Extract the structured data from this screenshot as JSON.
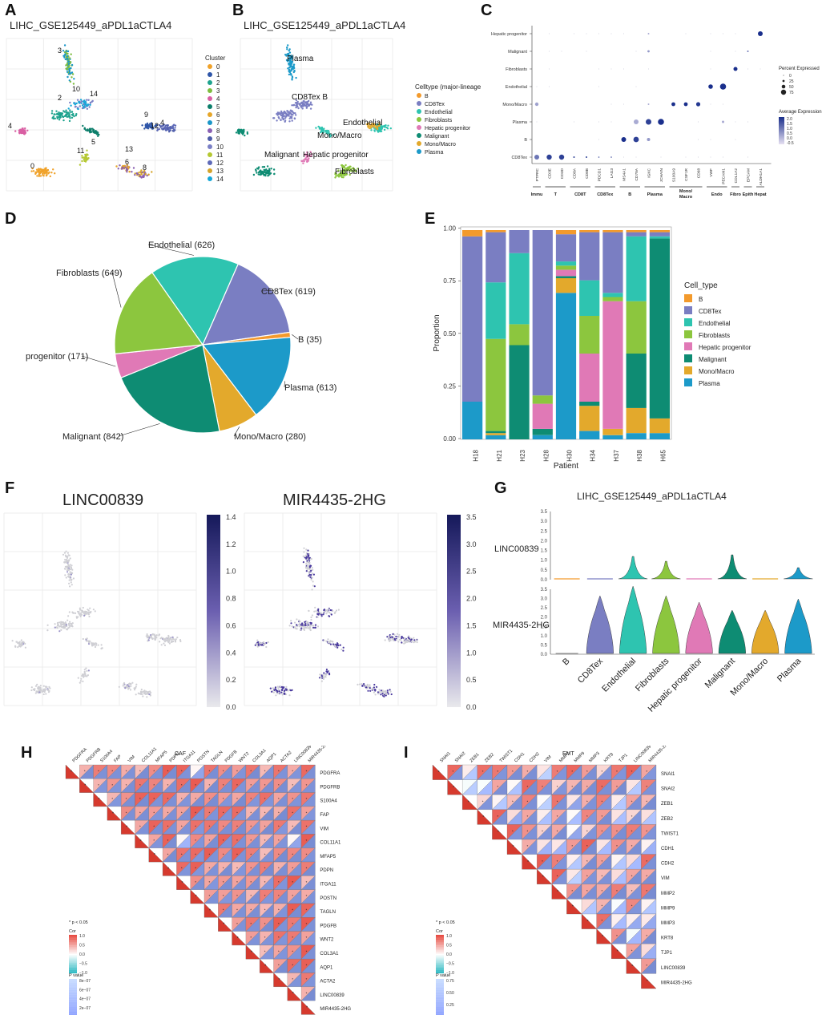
{
  "figure": {
    "panel_labels": [
      "A",
      "B",
      "C",
      "D",
      "E",
      "F",
      "G",
      "H",
      "I"
    ],
    "palette": {
      "B": "#F39A2C",
      "CD8Tex": "#7A7EC2",
      "Endothelial": "#2EC4B0",
      "Fibroblasts": "#8CC63E",
      "Hepatic progenitor": "#E079B6",
      "Malignant": "#0E8C73",
      "Mono/Macro": "#E3A92C",
      "Plasma": "#1C9AC9"
    }
  },
  "panelA": {
    "title": "LIHC_GSE125449_aPDL1aCTLA4",
    "legend_title": "Cluster",
    "clusters": [
      "0",
      "1",
      "2",
      "3",
      "4",
      "5",
      "6",
      "7",
      "8",
      "9",
      "10",
      "11",
      "12",
      "13",
      "14"
    ],
    "cluster_colors": [
      "#F0A22A",
      "#2E55A8",
      "#1EA38E",
      "#7EBD3E",
      "#D95FA3",
      "#0C7E6B",
      "#E6A629",
      "#1A96C8",
      "#8A60B3",
      "#4D5CA8",
      "#7B80C6",
      "#B5C832",
      "#5E6AB8",
      "#D5A42A",
      "#16A7D8"
    ],
    "plot_labels": [
      "3",
      "10",
      "2",
      "14",
      "9",
      "4",
      "12",
      "4",
      "5",
      "11",
      "13",
      "6",
      "8",
      "0"
    ]
  },
  "panelB": {
    "title": "LIHC_GSE125449_aPDL1aCTLA4",
    "legend_title": "Celltype (major-lineage)",
    "celltypes": [
      "B",
      "CD8Tex",
      "Endothelial",
      "Fibroblasts",
      "Hepatic progenitor",
      "Malignant",
      "Mono/Macro",
      "Plasma"
    ],
    "plot_labels": [
      "Plasma",
      "CD8Tex B",
      "Endothelial",
      "Mono/Macro",
      "Malignant",
      "Hepatic progenitor",
      "Fibroblasts"
    ]
  },
  "panelC": {
    "rows": [
      "Hepatic progenitor",
      "Malignant",
      "Fibroblasts",
      "Endothelial",
      "Mono/Macro",
      "Plasma",
      "B",
      "CD8Tex"
    ],
    "genes": [
      "PTPRC",
      "CD3E",
      "CD3D",
      "CD8A",
      "CD8B",
      "PDCD1",
      "LAG3",
      "MS4A1",
      "CD79A",
      "IGKC",
      "JCHAIN",
      "S100A9",
      "CSF1R",
      "CD68",
      "VWF",
      "PECAM1",
      "COL1A2",
      "EPCAM",
      "ALDH1A1"
    ],
    "groups": [
      "Immu",
      "T",
      "CD8T",
      "CD8Tex",
      "B",
      "Plasma",
      "Mono/ Macro",
      "Endo",
      "Fibro",
      "Epith",
      "Hepat"
    ],
    "legend_pct_title": "Percent Expressed",
    "legend_pct_values": [
      "0",
      "25",
      "50",
      "75"
    ],
    "legend_expr_title": "Average Expression",
    "legend_expr_ticks": [
      "2.0",
      "1.5",
      "1.0",
      "0.5",
      "0.0",
      "-0.5"
    ]
  },
  "panelD": {
    "chart_data": {
      "type": "pie",
      "title": "",
      "labels": [
        "Endothelial (626)",
        "CD8Tex (619)",
        "B (35)",
        "Plasma (613)",
        "Mono/Macro (280)",
        "Malignant (842)",
        "progenitor (171)",
        "Fibroblasts (649)"
      ],
      "categories": [
        "Endothelial",
        "CD8Tex",
        "B",
        "Plasma",
        "Mono/Macro",
        "Malignant",
        "Hepatic progenitor",
        "Fibroblasts"
      ],
      "values": [
        626,
        619,
        35,
        613,
        280,
        842,
        171,
        649
      ]
    }
  },
  "panelE": {
    "chart_data": {
      "type": "bar",
      "stacked": true,
      "xlabel": "Patient",
      "ylabel": "Proportion",
      "ylim": [
        0,
        1
      ],
      "yticks": [
        "0.00",
        "0.25",
        "0.50",
        "0.75",
        "1.00"
      ],
      "categories": [
        "H18",
        "H21",
        "H23",
        "H28",
        "H30",
        "H34",
        "H37",
        "H38",
        "H65"
      ],
      "legend_title": "Cell_type",
      "series": [
        {
          "name": "B",
          "values": [
            0.03,
            0.01,
            0,
            0,
            0.02,
            0.01,
            0.01,
            0.01,
            0.01
          ]
        },
        {
          "name": "CD8Tex",
          "values": [
            0.79,
            0.24,
            0.11,
            0.79,
            0.13,
            0.23,
            0.29,
            0.02,
            0.02
          ]
        },
        {
          "name": "Endothelial",
          "values": [
            0,
            0.27,
            0.34,
            0,
            0.02,
            0.17,
            0.02,
            0.31,
            0.01
          ]
        },
        {
          "name": "Fibroblasts",
          "values": [
            0,
            0.44,
            0.1,
            0.04,
            0.02,
            0.18,
            0.02,
            0.25,
            0
          ]
        },
        {
          "name": "Hepatic progenitor",
          "values": [
            0,
            0,
            0,
            0.12,
            0.03,
            0.23,
            0.61,
            0,
            0
          ]
        },
        {
          "name": "Malignant",
          "values": [
            0,
            0.01,
            0.45,
            0.03,
            0.01,
            0.02,
            0,
            0.26,
            0.86
          ]
        },
        {
          "name": "Mono/Macro",
          "values": [
            0,
            0.01,
            0,
            0,
            0.07,
            0.12,
            0.03,
            0.12,
            0.07
          ]
        },
        {
          "name": "Plasma",
          "values": [
            0.18,
            0.02,
            0,
            0.02,
            0.7,
            0.04,
            0.02,
            0.03,
            0.03
          ]
        }
      ]
    }
  },
  "panelF": {
    "left_title": "LINC00839",
    "right_title": "MIR4435-2HG",
    "left_scale": [
      "1.4",
      "1.2",
      "1.0",
      "0.8",
      "0.6",
      "0.4",
      "0.2",
      "0.0"
    ],
    "right_scale": [
      "3.5",
      "3.0",
      "2.5",
      "2.0",
      "1.5",
      "1.0",
      "0.5",
      "0.0"
    ]
  },
  "panelG": {
    "title": "LIHC_GSE125449_aPDL1aCTLA4",
    "genes": [
      "LINC00839",
      "MIR4435-2HG"
    ],
    "yticks": [
      "3.5",
      "3.0",
      "2.5",
      "2.0",
      "1.5",
      "1.0",
      "0.5",
      "0.0"
    ],
    "categories": [
      "B",
      "CD8Tex",
      "Endothelial",
      "Fibroblasts",
      "Hepatic progenitor",
      "Malignant",
      "Mono/Macro",
      "Plasma"
    ]
  },
  "panelH": {
    "title": "CAF",
    "genes": [
      "PDGFRA",
      "PDGFRB",
      "S100A4",
      "FAP",
      "VIM",
      "COL11A1",
      "MFAP5",
      "PDPN",
      "ITGA11",
      "POSTN",
      "TAGLN",
      "PDGFB",
      "WNT2",
      "COL3A1",
      "AQP1",
      "ACTA2",
      "LINC00839",
      "MIR4435-2HG"
    ],
    "note": "* p < 0.05",
    "cor_title": "Cor",
    "cor_ticks": [
      "1.0",
      "0.5",
      "0.0",
      "−0.5",
      "−1.0"
    ],
    "p_title": "P value",
    "p_ticks": [
      "8e−07",
      "6e−07",
      "4e−07",
      "2e−07",
      "0e+00"
    ]
  },
  "panelI": {
    "title": "EMT",
    "genes": [
      "SNAI1",
      "SNAI2",
      "ZEB1",
      "ZEB2",
      "TWIST1",
      "CDH1",
      "CDH2",
      "VIM",
      "MMP2",
      "MMP9",
      "MMP3",
      "KRT8",
      "TJP1",
      "LINC00839",
      "MIR4435-2HG"
    ],
    "note": "* p < 0.05",
    "cor_title": "Cor",
    "cor_ticks": [
      "1.0",
      "0.5",
      "0.0",
      "−0.5",
      "−1.0"
    ],
    "p_title": "P value",
    "p_ticks": [
      "0.75",
      "0.50",
      "0.25",
      "0.00"
    ]
  }
}
